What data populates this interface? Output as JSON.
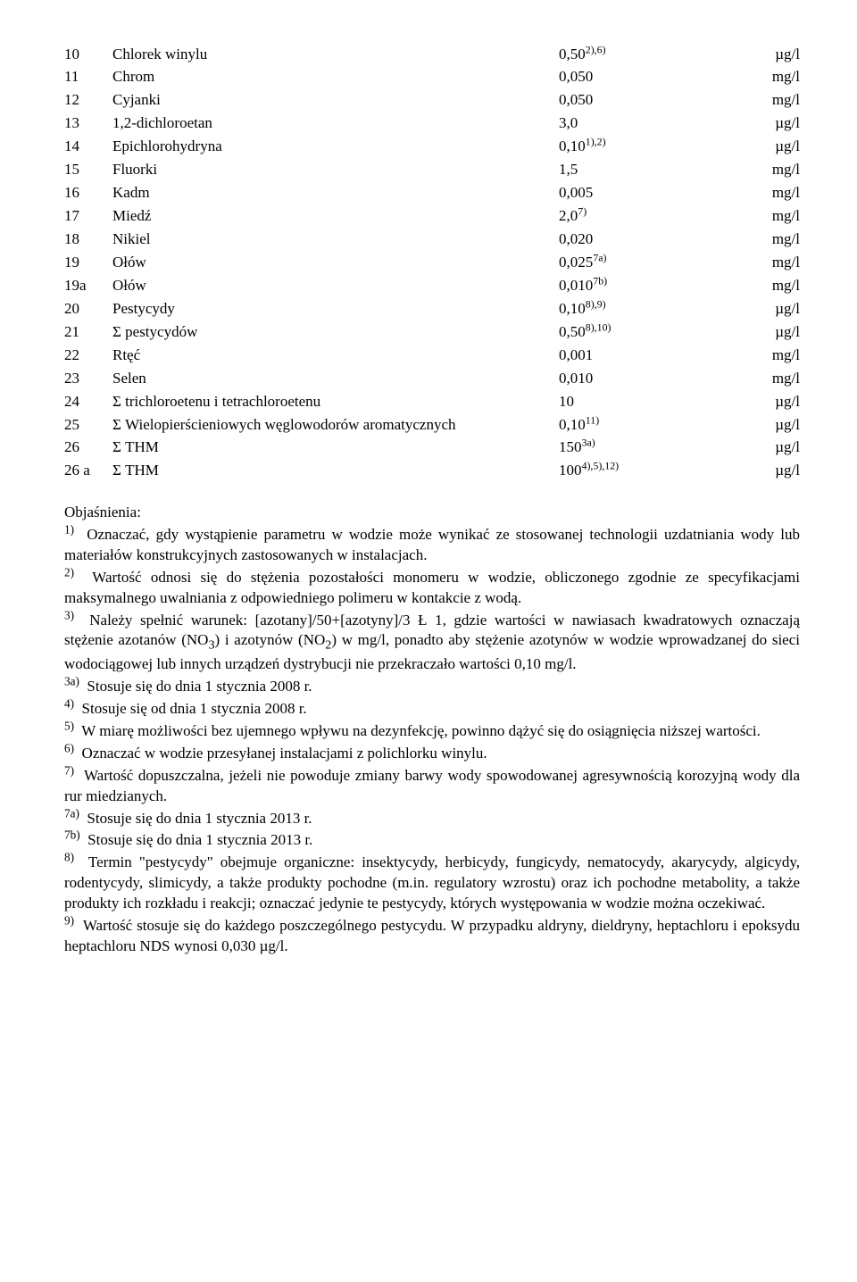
{
  "table": {
    "rows": [
      {
        "num": "10",
        "name": "Chlorek winylu",
        "val": "0,50",
        "sup": "2),6)",
        "unit": "µg/l"
      },
      {
        "num": "11",
        "name": "Chrom",
        "val": "0,050",
        "sup": "",
        "unit": "mg/l"
      },
      {
        "num": "12",
        "name": "Cyjanki",
        "val": "0,050",
        "sup": "",
        "unit": "mg/l"
      },
      {
        "num": "13",
        "name": "1,2-dichloroetan",
        "val": "3,0",
        "sup": "",
        "unit": "µg/l"
      },
      {
        "num": "14",
        "name": "Epichlorohydryna",
        "val": "0,10",
        "sup": "1),2)",
        "unit": "µg/l"
      },
      {
        "num": "15",
        "name": "Fluorki",
        "val": "1,5",
        "sup": "",
        "unit": "mg/l"
      },
      {
        "num": "16",
        "name": "Kadm",
        "val": "0,005",
        "sup": "",
        "unit": "mg/l"
      },
      {
        "num": "17",
        "name": "Miedź",
        "val": "2,0",
        "sup": "7)",
        "unit": "mg/l"
      },
      {
        "num": "18",
        "name": "Nikiel",
        "val": "0,020",
        "sup": "",
        "unit": "mg/l"
      },
      {
        "num": "19",
        "name": "Ołów",
        "val": "0,025",
        "sup": "7a)",
        "unit": "mg/l"
      },
      {
        "num": "19a",
        "name": "Ołów",
        "val": "0,010",
        "sup": "7b)",
        "unit": "mg/l"
      },
      {
        "num": "20",
        "name": "Pestycydy",
        "val": "0,10",
        "sup": "8),9)",
        "unit": "µg/l"
      },
      {
        "num": "21",
        "name": "Σ pestycydów",
        "val": "0,50",
        "sup": "8),10)",
        "unit": "µg/l"
      },
      {
        "num": "22",
        "name": "Rtęć",
        "val": "0,001",
        "sup": "",
        "unit": "mg/l"
      },
      {
        "num": "23",
        "name": "Selen",
        "val": "0,010",
        "sup": "",
        "unit": "mg/l"
      },
      {
        "num": "24",
        "name": "Σ trichloroetenu i tetrachloroetenu",
        "val": "10",
        "sup": "",
        "unit": "µg/l"
      },
      {
        "num": "25",
        "name": "Σ Wielopierścieniowych węglowodorów aromatycznych",
        "val": "0,10",
        "sup": "11)",
        "unit": "µg/l"
      },
      {
        "num": "26",
        "name": "Σ THM",
        "val": "150",
        "sup": "3a)",
        "unit": "µg/l"
      },
      {
        "num": "26 a",
        "name": "Σ THM",
        "val": "100",
        "sup": "4),5),12)",
        "unit": "µg/l"
      }
    ]
  },
  "notes_heading": "Objaśnienia:",
  "notes": [
    {
      "lead": "1)",
      "text": " Oznaczać, gdy wystąpienie parametru w wodzie może wynikać ze stosowanej technologii uzdatniania wody lub materiałów konstrukcyjnych zastosowanych w instalacjach."
    },
    {
      "lead": "2)",
      "text": " Wartość odnosi się do stężenia pozostałości monomeru w wodzie, obliczonego zgodnie ze specyfikacjami maksymalnego uwalniania z odpowiedniego polimeru w kontakcie z wodą."
    },
    {
      "lead": "3)",
      "text": " Należy spełnić warunek: [azotany]/50+[azotyny]/3 Ł 1, gdzie wartości w nawiasach kwadratowych oznaczają stężenie azotanów (NO",
      "sub1": "3",
      "mid": ") i azotynów (NO",
      "sub2": "2",
      "tail": ") w mg/l, ponadto aby stężenie azotynów w wodzie wprowadzanej do sieci wodociągowej lub innych urządzeń dystrybucji nie przekraczało wartości 0,10 mg/l."
    },
    {
      "lead": "3a)",
      "text": " Stosuje się do dnia 1 stycznia 2008 r."
    },
    {
      "lead": "4)",
      "text": " Stosuje się od dnia 1 stycznia 2008 r."
    },
    {
      "lead": "5)",
      "text": " W miarę możliwości bez ujemnego wpływu na dezynfekcję, powinno dążyć się do osiągnięcia niższej wartości."
    },
    {
      "lead": "6)",
      "text": " Oznaczać w wodzie przesyłanej instalacjami z polichlorku winylu."
    },
    {
      "lead": "7)",
      "text": " Wartość dopuszczalna, jeżeli nie powoduje zmiany barwy wody spowodowanej agresywnością korozyjną wody dla rur miedzianych."
    },
    {
      "lead": "7a)",
      "text": " Stosuje się do dnia 1 stycznia 2013 r."
    },
    {
      "lead": "7b)",
      "text": " Stosuje się do dnia 1 stycznia 2013 r."
    },
    {
      "lead": "8)",
      "text": " Termin \"pestycydy\" obejmuje organiczne: insektycydy, herbicydy, fungicydy, nematocydy, akarycydy, algicydy, rodentycydy, slimicydy, a także produkty pochodne (m.in. regulatory wzrostu) oraz ich pochodne metabolity, a także produkty ich rozkładu i reakcji; oznaczać jedynie te pestycydy, których występowania w wodzie można oczekiwać."
    },
    {
      "lead": "9)",
      "text": " Wartość stosuje się do każdego poszczególnego pestycydu. W przypadku aldryny, dieldryny, heptachloru i epoksydu heptachloru NDS wynosi 0,030 µg/l."
    }
  ]
}
